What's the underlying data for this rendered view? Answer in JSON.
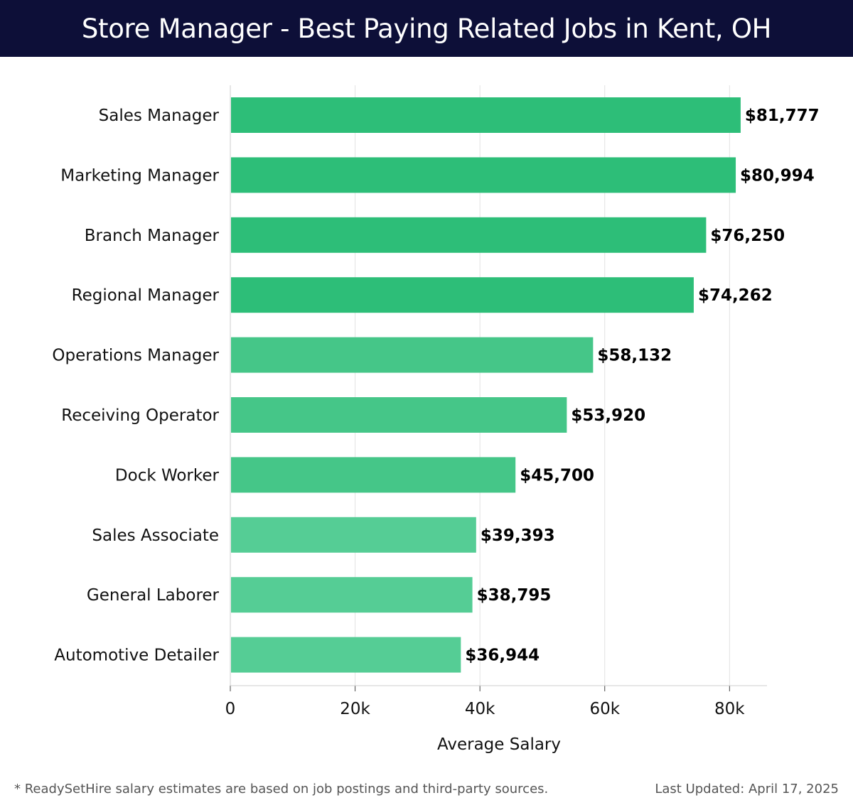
{
  "header": {
    "title": "Store Manager - Best Paying Related Jobs in Kent, OH"
  },
  "chart_data": {
    "type": "bar",
    "orientation": "horizontal",
    "categories": [
      "Sales Manager",
      "Marketing Manager",
      "Branch Manager",
      "Regional Manager",
      "Operations Manager",
      "Receiving Operator",
      "Dock Worker",
      "Sales Associate",
      "General Laborer",
      "Automotive Detailer"
    ],
    "values": [
      81777,
      80994,
      76250,
      74262,
      58132,
      53920,
      45700,
      39393,
      38795,
      36944
    ],
    "value_labels": [
      "$81,777",
      "$80,994",
      "$76,250",
      "$74,262",
      "$58,132",
      "$53,920",
      "$45,700",
      "$39,393",
      "$38,795",
      "$36,944"
    ],
    "xlabel": "Average Salary",
    "ylabel": "",
    "xlim": [
      0,
      86000
    ],
    "xticks": [
      0,
      20000,
      40000,
      60000,
      80000
    ],
    "xtick_labels": [
      "0",
      "20k",
      "40k",
      "60k",
      "80k"
    ],
    "grid": true,
    "colors": {
      "high": "#2dbe78",
      "mid": "#45c688",
      "low": "#55cd95",
      "grid": "#e2e2e2",
      "axis": "#cccccc"
    }
  },
  "footer": {
    "note": "* ReadySetHire salary estimates are based on job postings and third-party sources.",
    "updated": "Last Updated: April 17, 2025"
  }
}
